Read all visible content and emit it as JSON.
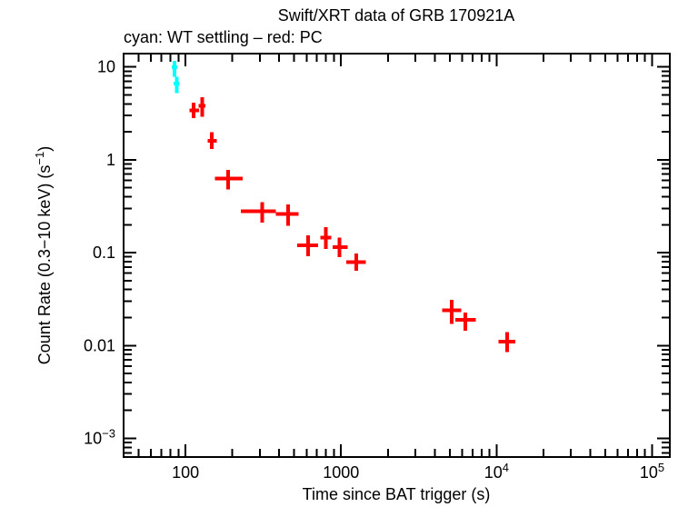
{
  "chart_data": {
    "type": "scatter",
    "title": "Swift/XRT data of GRB 170921A",
    "subtitle": "cyan: WT settling – red: PC",
    "xlabel": "Time since BAT trigger (s)",
    "ylabel": "Count Rate (0.3−10 keV) (s^{−1})",
    "x_scale": "log",
    "y_scale": "log",
    "xlim": [
      40,
      130000
    ],
    "ylim": [
      0.00063,
      13.9
    ],
    "x_ticks": [
      {
        "value": 100,
        "label": "100"
      },
      {
        "value": 1000,
        "label": "1000"
      },
      {
        "value": 10000,
        "label": "10^{4}"
      },
      {
        "value": 100000,
        "label": "10^{5}"
      }
    ],
    "y_ticks": [
      {
        "value": 10,
        "label": "10"
      },
      {
        "value": 1,
        "label": "1"
      },
      {
        "value": 0.1,
        "label": "0.1"
      },
      {
        "value": 0.01,
        "label": "0.01"
      },
      {
        "value": 0.001,
        "label": "10^{−3}"
      }
    ],
    "series": [
      {
        "name": "WT settling",
        "color": "#00ffff",
        "points": [
          {
            "t": 85,
            "t_lo": 81.5,
            "t_hi": 88.5,
            "rate": 9.9,
            "rate_lo": 7.8,
            "rate_hi": 11.6
          },
          {
            "t": 88,
            "t_lo": 84,
            "t_hi": 91.5,
            "rate": 6.6,
            "rate_lo": 5.2,
            "rate_hi": 7.8
          }
        ]
      },
      {
        "name": "PC",
        "color": "#ff0000",
        "points": [
          {
            "t": 113,
            "t_lo": 106,
            "t_hi": 122,
            "rate": 3.4,
            "rate_lo": 2.8,
            "rate_hi": 4.1
          },
          {
            "t": 128,
            "t_lo": 121,
            "t_hi": 134,
            "rate": 3.8,
            "rate_lo": 2.9,
            "rate_hi": 4.7
          },
          {
            "t": 148,
            "t_lo": 139,
            "t_hi": 159,
            "rate": 1.6,
            "rate_lo": 1.31,
            "rate_hi": 1.98
          },
          {
            "t": 188,
            "t_lo": 155,
            "t_hi": 233,
            "rate": 0.63,
            "rate_lo": 0.48,
            "rate_hi": 0.78
          },
          {
            "t": 311,
            "t_lo": 227,
            "t_hi": 381,
            "rate": 0.28,
            "rate_lo": 0.21,
            "rate_hi": 0.35
          },
          {
            "t": 456,
            "t_lo": 381,
            "t_hi": 533,
            "rate": 0.26,
            "rate_lo": 0.195,
            "rate_hi": 0.33
          },
          {
            "t": 616,
            "t_lo": 521,
            "t_hi": 714,
            "rate": 0.12,
            "rate_lo": 0.091,
            "rate_hi": 0.154
          },
          {
            "t": 798,
            "t_lo": 736,
            "t_hi": 866,
            "rate": 0.146,
            "rate_lo": 0.11,
            "rate_hi": 0.189
          },
          {
            "t": 977,
            "t_lo": 882,
            "t_hi": 1104,
            "rate": 0.114,
            "rate_lo": 0.089,
            "rate_hi": 0.146
          },
          {
            "t": 1253,
            "t_lo": 1084,
            "t_hi": 1445,
            "rate": 0.079,
            "rate_lo": 0.064,
            "rate_hi": 0.098
          },
          {
            "t": 5150,
            "t_lo": 4480,
            "t_hi": 5930,
            "rate": 0.024,
            "rate_lo": 0.017,
            "rate_hi": 0.031
          },
          {
            "t": 6300,
            "t_lo": 5420,
            "t_hi": 7350,
            "rate": 0.019,
            "rate_lo": 0.0144,
            "rate_hi": 0.0227
          },
          {
            "t": 11700,
            "t_lo": 10280,
            "t_hi": 13180,
            "rate": 0.011,
            "rate_lo": 0.0085,
            "rate_hi": 0.0139
          }
        ]
      }
    ]
  },
  "colors": {
    "background": "#ffffff",
    "foreground": "#000000",
    "wt_settling": "#00ffff",
    "pc": "#ff0000"
  }
}
